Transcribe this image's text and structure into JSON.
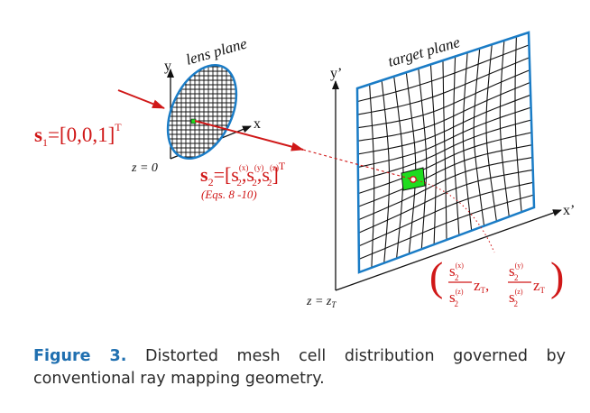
{
  "figure": {
    "lens_plane_label": "lens plane",
    "target_plane_label": "target plane",
    "lens_axes": {
      "y": "y",
      "x": "x",
      "z": "z = 0"
    },
    "target_axes": {
      "y": "y’",
      "x": "x’",
      "z": "z = z",
      "z_sub": "T"
    },
    "s1": {
      "sym": "s",
      "sub": "1",
      "eq": "=[0,0,1]",
      "sup": "T"
    },
    "s2": {
      "sym": "s",
      "sub": "2",
      "eq": "=[",
      "c": "s",
      "cx": "(x)",
      "cy": "(y)",
      "cz": "(z)",
      "csub": "2",
      "sep": ",",
      "close": "]",
      "sup": "T"
    },
    "eqs_note": "(Eqs. 8 -10)",
    "mapping": {
      "num_x": "s",
      "num_x_sup": "(x)",
      "den": "s",
      "den_sup": "(z)",
      "sub2": "2",
      "num_y": "s",
      "num_y_sup": "(y)",
      "zt": "z",
      "zt_sub": "T",
      "comma": ",",
      "lparen": "(",
      "rparen": ")"
    },
    "colors": {
      "lens_rim": "#1a7cc6",
      "target_rim": "#1a7cc6",
      "ray": "#d01818",
      "cell": "#1fdc1f"
    }
  },
  "caption": {
    "label": "Figure 3.",
    "text": "Distorted mesh cell distribution governed by conventional ray mapping geometry."
  }
}
